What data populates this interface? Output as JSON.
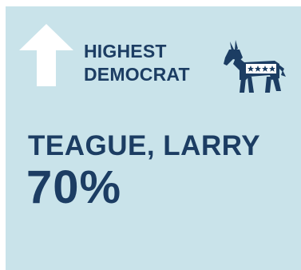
{
  "badge": {
    "line1": "HIGHEST",
    "line2": "DEMOCRAT",
    "arrow_icon": "arrow-up-icon",
    "party_icon": "democratic-donkey-icon"
  },
  "member": {
    "name": "TEAGUE, LARRY",
    "score": "70%"
  },
  "colors": {
    "background": "#c9e3ea",
    "text": "#1c3d63",
    "arrow": "#ffffff",
    "donkey": "#1c3d63"
  }
}
